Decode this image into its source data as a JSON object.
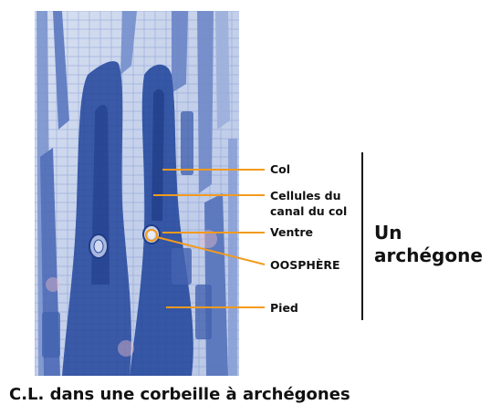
{
  "labels": {
    "col": "Col",
    "cellules_l1": "Cellules du",
    "cellules_l2": "canal du col",
    "ventre": "Ventre",
    "oosphere": "OOSPHÈRE",
    "pied": "Pied"
  },
  "bracket_title_l1": "Un",
  "bracket_title_l2": "archégone",
  "caption": "C.L. dans une corbeille à archégones",
  "colors": {
    "leader": "#f39a1e",
    "tissue_dark": "#2f4f9e",
    "tissue_mid": "#5f7fc4",
    "background_tissue": "#c9d6ee"
  }
}
